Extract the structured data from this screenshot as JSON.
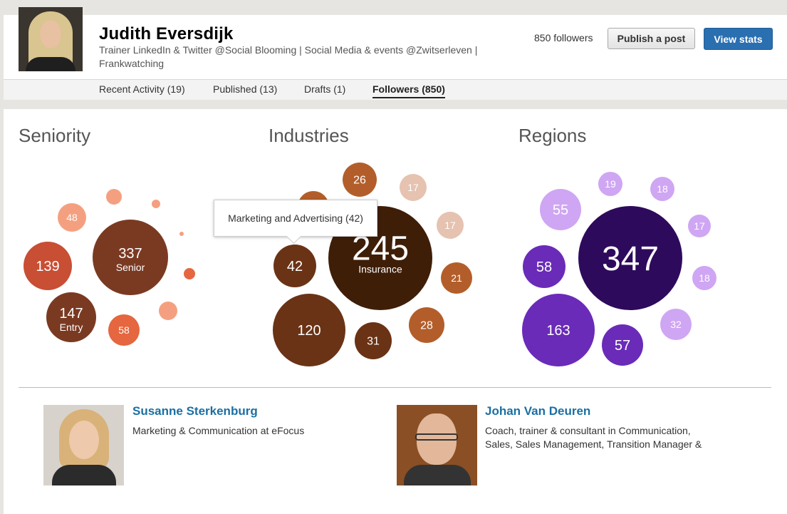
{
  "profile": {
    "name": "Judith Eversdijk",
    "headline": "Trainer LinkedIn & Twitter @Social Blooming | Social Media & events @Zwitserleven | Frankwatching",
    "followers": "850 followers",
    "publish_label": "Publish a post",
    "stats_label": "View stats"
  },
  "tabs": [
    {
      "label": "Recent Activity (19)"
    },
    {
      "label": "Published (13)"
    },
    {
      "label": "Drafts (1)"
    },
    {
      "label": "Followers (850)",
      "active": true
    }
  ],
  "sections": {
    "seniority": "Seniority",
    "industries": "Industries",
    "regions": "Regions"
  },
  "tooltip": "Marketing and Advertising (42)",
  "colors": {
    "seniority": [
      "#7a3a22",
      "#c84e34",
      "#e5663f",
      "#f4a080"
    ],
    "industries": [
      "#3f1e08",
      "#6a3315",
      "#b35e2a",
      "#e6c2b0"
    ],
    "regions": [
      "#2e0a5c",
      "#6a2bb8",
      "#9b5ce0",
      "#cfa6f3"
    ],
    "accent": "#2a6fb0",
    "link": "#1a6fa3"
  },
  "chart_data": [
    {
      "type": "bubble",
      "title": "Seniority",
      "values": [
        {
          "value": "337",
          "label": "Senior"
        },
        {
          "value": "147",
          "label": "Entry"
        },
        {
          "value": "139",
          "label": ""
        },
        {
          "value": "58",
          "label": ""
        },
        {
          "value": "48",
          "label": ""
        }
      ]
    },
    {
      "type": "bubble",
      "title": "Industries",
      "values": [
        {
          "value": "245",
          "label": "Insurance"
        },
        {
          "value": "120",
          "label": ""
        },
        {
          "value": "42",
          "label": "Marketing and Advertising"
        },
        {
          "value": "31",
          "label": ""
        },
        {
          "value": "28",
          "label": ""
        },
        {
          "value": "26",
          "label": ""
        },
        {
          "value": "21",
          "label": ""
        },
        {
          "value": "17",
          "label": ""
        },
        {
          "value": "17",
          "label": ""
        }
      ]
    },
    {
      "type": "bubble",
      "title": "Regions",
      "values": [
        {
          "value": "347",
          "label": ""
        },
        {
          "value": "163",
          "label": ""
        },
        {
          "value": "58",
          "label": ""
        },
        {
          "value": "57",
          "label": ""
        },
        {
          "value": "55",
          "label": ""
        },
        {
          "value": "32",
          "label": ""
        },
        {
          "value": "19",
          "label": ""
        },
        {
          "value": "18",
          "label": ""
        },
        {
          "value": "18",
          "label": ""
        },
        {
          "value": "17",
          "label": ""
        }
      ]
    }
  ],
  "people": [
    {
      "name": "Susanne Sterkenburg",
      "desc": "Marketing & Communication at eFocus"
    },
    {
      "name": "Johan Van Deuren",
      "desc": "Coach, trainer & consultant in Communication, Sales, Sales Management, Transition Manager &"
    }
  ]
}
